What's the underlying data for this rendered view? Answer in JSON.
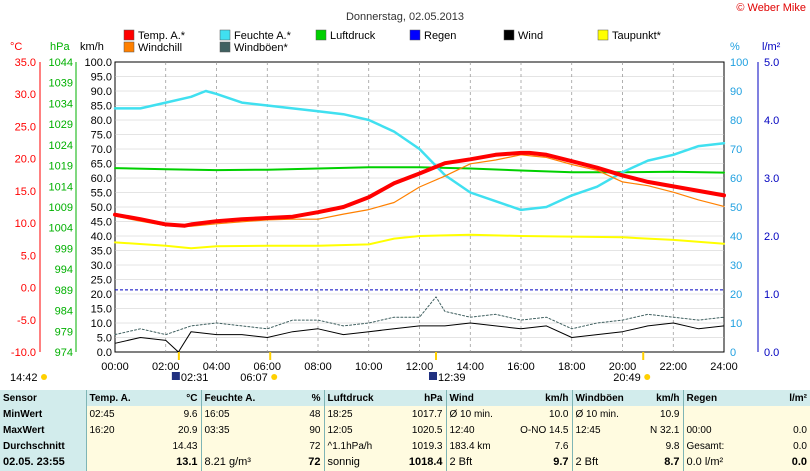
{
  "chart_data": {
    "type": "line",
    "title": "Donnerstag, 02.05.2013",
    "credit": "© Weber Mike",
    "x_ticks": [
      "00:00",
      "02:00",
      "04:00",
      "06:00",
      "08:00",
      "10:00",
      "12:00",
      "14:00",
      "16:00",
      "18:00",
      "20:00",
      "22:00",
      "24:00"
    ],
    "axes": {
      "temp": {
        "unit": "°C",
        "range": [
          -10,
          35
        ],
        "ticks": [
          "35.0",
          "30.0",
          "25.0",
          "20.0",
          "15.0",
          "10.0",
          "5.0",
          "0.0",
          "-5.0",
          "-10.0"
        ],
        "color": "#ff0000"
      },
      "press": {
        "unit": "hPa",
        "range": [
          974,
          1044
        ],
        "ticks": [
          "1044",
          "1039",
          "1034",
          "1029",
          "1024",
          "1019",
          "1014",
          "1009",
          "1004",
          "999",
          "994",
          "989",
          "984",
          "979",
          "974"
        ],
        "color": "#00b000"
      },
      "wind": {
        "unit": "km/h",
        "range": [
          0,
          100
        ],
        "ticks": [
          "100.0",
          "95.0",
          "90.0",
          "85.0",
          "80.0",
          "75.0",
          "70.0",
          "65.0",
          "60.0",
          "55.0",
          "50.0",
          "45.0",
          "40.0",
          "35.0",
          "30.0",
          "25.0",
          "20.0",
          "15.0",
          "10.0",
          "5.0",
          "0.0"
        ],
        "color": "#000000"
      },
      "hum": {
        "unit": "%",
        "range": [
          0,
          100
        ],
        "ticks": [
          "100",
          "90",
          "80",
          "70",
          "60",
          "50",
          "40",
          "30",
          "20",
          "10",
          "0"
        ],
        "color": "#00c8e0"
      },
      "rain": {
        "unit": "l/m²",
        "range": [
          0,
          5
        ],
        "ticks": [
          "5.0",
          "4.0",
          "3.0",
          "2.0",
          "1.0",
          "0.0"
        ],
        "color": "#0000c0"
      }
    },
    "legend": [
      {
        "name": "Temp. A.*",
        "color": "#ff0000"
      },
      {
        "name": "Feuchte A.*",
        "color": "#40e0f0"
      },
      {
        "name": "Luftdruck",
        "color": "#00d000"
      },
      {
        "name": "Regen",
        "color": "#0000ff"
      },
      {
        "name": "Wind",
        "color": "#000000"
      },
      {
        "name": "Taupunkt*",
        "color": "#ffff00"
      },
      {
        "name": "Windchill",
        "color": "#ff8000"
      },
      {
        "name": "Windböen*",
        "color": "#406060"
      }
    ],
    "series": [
      {
        "name": "Temp. A.*",
        "axis": "temp",
        "color": "#ff0000",
        "width": 4,
        "x": [
          0,
          1,
          2,
          2.75,
          3,
          4,
          5,
          6,
          7,
          8,
          9,
          10,
          11,
          12,
          13,
          14,
          15,
          16,
          16.33,
          17,
          18,
          19,
          20,
          21,
          22,
          23,
          24
        ],
        "y": [
          11.3,
          10.6,
          9.8,
          9.6,
          9.8,
          10.3,
          10.6,
          10.8,
          11.0,
          11.7,
          12.5,
          14.0,
          16.2,
          17.7,
          19.3,
          19.9,
          20.6,
          20.9,
          20.9,
          20.6,
          19.6,
          18.6,
          17.4,
          16.4,
          15.7,
          15.0,
          14.3
        ]
      },
      {
        "name": "Windchill",
        "axis": "temp",
        "color": "#ff8000",
        "width": 1.2,
        "x": [
          0,
          1,
          2,
          3,
          4,
          5,
          6,
          7,
          8,
          9,
          10,
          11,
          12,
          13,
          14,
          15,
          16,
          16.5,
          17,
          18,
          19,
          20,
          21,
          22,
          23,
          24
        ],
        "y": [
          11.1,
          10.3,
          9.6,
          9.5,
          9.9,
          10.2,
          10.5,
          10.6,
          10.6,
          11.4,
          12.1,
          13.2,
          15.6,
          17.3,
          19.2,
          19.8,
          20.6,
          20.4,
          20.2,
          19.1,
          18.2,
          16.4,
          15.8,
          14.8,
          13.6,
          12.6
        ]
      },
      {
        "name": "Feuchte A.*",
        "axis": "hum",
        "color": "#40e0f0",
        "width": 2.5,
        "x": [
          0,
          1,
          2,
          3,
          3.58,
          4,
          5,
          6,
          7,
          8,
          9,
          10,
          11,
          12,
          13,
          14,
          15,
          16,
          17,
          18,
          19,
          20,
          21,
          22,
          23,
          24
        ],
        "y": [
          84,
          84,
          86,
          88,
          90,
          89,
          86,
          85,
          84,
          83,
          82,
          80,
          76,
          70,
          61,
          55,
          52,
          49,
          50,
          54,
          57,
          62,
          66,
          68,
          71,
          72
        ]
      },
      {
        "name": "Luftdruck",
        "axis": "press",
        "color": "#00d000",
        "width": 2,
        "x": [
          0,
          2,
          4,
          6,
          8,
          10,
          12,
          14,
          16,
          18,
          20,
          22,
          24
        ],
        "y": [
          1018.4,
          1018.1,
          1017.9,
          1018.0,
          1018.3,
          1018.6,
          1018.6,
          1018.3,
          1017.8,
          1017.4,
          1017.4,
          1017.5,
          1017.3
        ]
      },
      {
        "name": "Taupunkt*",
        "axis": "temp",
        "color": "#ffff00",
        "width": 2,
        "x": [
          0,
          2,
          3,
          4,
          6,
          8,
          10,
          11,
          12,
          14,
          16,
          18,
          20,
          22,
          24
        ],
        "y": [
          7.0,
          6.5,
          6.1,
          6.4,
          6.5,
          6.5,
          6.7,
          7.6,
          8.0,
          8.2,
          8.0,
          7.9,
          7.8,
          7.4,
          6.8
        ]
      },
      {
        "name": "Wind",
        "axis": "wind",
        "color": "#000000",
        "width": 1,
        "x": [
          0,
          1,
          2,
          2.5,
          3,
          4,
          5,
          6,
          7,
          8,
          9,
          10,
          11,
          12,
          13,
          14,
          15,
          16,
          17,
          18,
          19,
          20,
          21,
          22,
          23,
          24
        ],
        "y": [
          3,
          5,
          4,
          0,
          7,
          6,
          6,
          5,
          7,
          8,
          6,
          7,
          8,
          9,
          9,
          10,
          9,
          8,
          9,
          5,
          6,
          7,
          9,
          10,
          8,
          9
        ]
      },
      {
        "name": "Windböen*",
        "axis": "wind",
        "color": "#406060",
        "width": 1,
        "dash": "2,2",
        "x": [
          0,
          1,
          2,
          3,
          4,
          5,
          6,
          7,
          8,
          9,
          10,
          11,
          12,
          12.65,
          13,
          14,
          15,
          16,
          17,
          18,
          19,
          20,
          21,
          22,
          23,
          24
        ],
        "y": [
          6,
          8,
          6,
          9,
          10,
          9,
          8,
          11,
          11,
          9,
          10,
          12,
          12,
          19,
          14,
          12,
          13,
          11,
          12,
          8,
          10,
          11,
          13,
          12,
          11,
          12
        ]
      }
    ],
    "reference_lines": [
      {
        "axis": "press",
        "value": 989,
        "color": "#0000c0"
      }
    ],
    "events": [
      {
        "time": "14:42",
        "label": "14:42",
        "icon": "sunrise"
      },
      {
        "time": "02:31",
        "label": "02:31",
        "icon": "moon"
      },
      {
        "time": "06:07",
        "label": "06:07",
        "icon": "sun"
      },
      {
        "time": "12:39",
        "label": "12:39",
        "icon": "moon"
      },
      {
        "time": "20:49",
        "label": "20:49",
        "icon": "sun"
      }
    ]
  },
  "stats": {
    "headers": [
      "Sensor",
      "Temp. A.",
      "°C",
      "Feuchte A.",
      "%",
      "Luftdruck",
      "hPa",
      "Wind",
      "km/h",
      "Windböen",
      "km/h",
      "Regen",
      "l/m²"
    ],
    "rows": [
      {
        "label": "MinWert",
        "cells": [
          "02:45",
          "9.6",
          "16:05",
          "48",
          "18:25",
          "1017.7",
          "Ø 10 min.",
          "10.0",
          "Ø 10 min.",
          "10.9",
          "",
          ""
        ]
      },
      {
        "label": "MaxWert",
        "cells": [
          "16:20",
          "20.9",
          "03:35",
          "90",
          "12:05",
          "1020.5",
          "12:40",
          "O-NO 14.5",
          "12:45",
          "N 32.1",
          "00:00",
          "0.0"
        ]
      },
      {
        "label": "Durchschnitt",
        "cells": [
          "",
          "14.43",
          "",
          "72",
          "^1.1hPa/h",
          "1019.3",
          "183.4 km",
          "7.6",
          "",
          "9.8",
          "Gesamt:",
          "0.0"
        ]
      },
      {
        "label": "02.05. 23:55",
        "cells": [
          "",
          "13.1",
          "8.21 g/m³",
          "72",
          "sonnig",
          "1018.4",
          "2 Bft",
          "9.7",
          "2 Bft",
          "8.7",
          "0.0 l/m²",
          "0.0"
        ]
      }
    ]
  }
}
